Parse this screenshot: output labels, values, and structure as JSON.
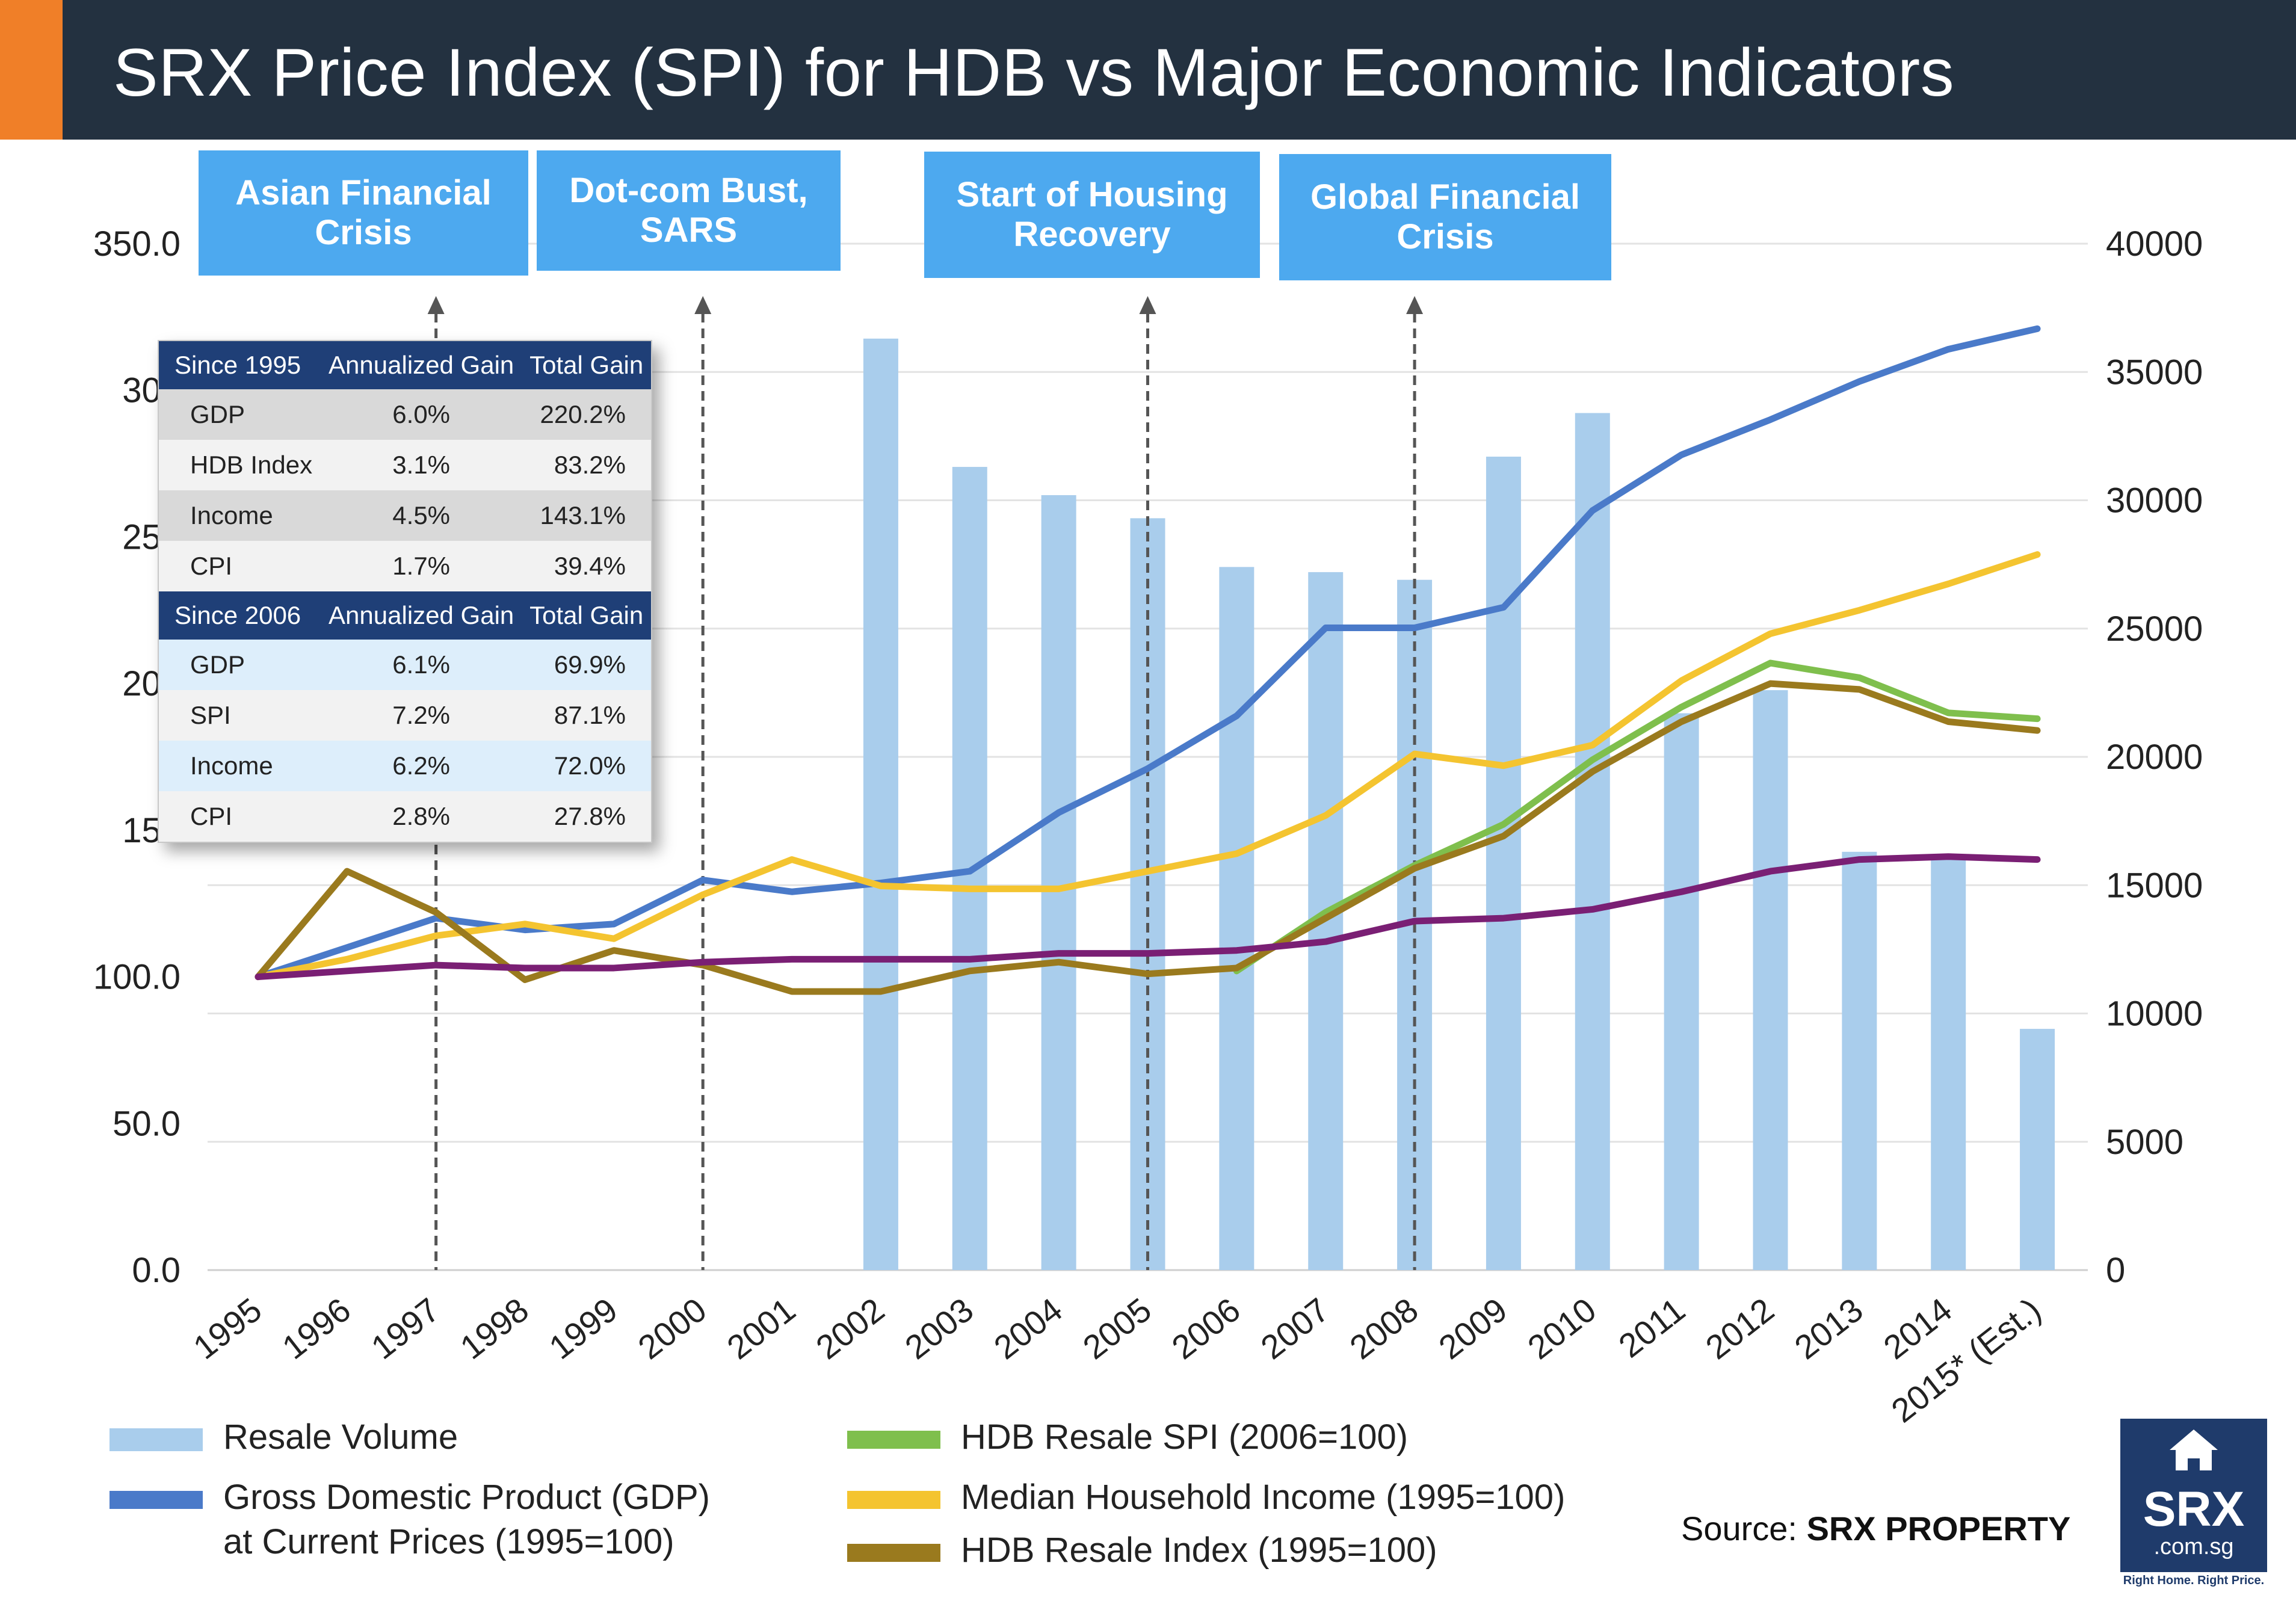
{
  "header": {
    "title": "SRX Price Index (SPI) for HDB vs Major Economic Indicators",
    "background_color": "#233140",
    "accent_color": "#f07f28"
  },
  "events": [
    {
      "label": "Asian Financial\nCrisis",
      "year": "1997"
    },
    {
      "label": "Dot-com Bust,\nSARS",
      "year": "2000"
    },
    {
      "label": "Start of Housing\nRecovery",
      "year": "2005"
    },
    {
      "label": "Global Financial\nCrisis",
      "year": "2008"
    }
  ],
  "stats_table": {
    "groups": [
      {
        "headers": [
          "Since 1995",
          "Annualized Gain",
          "Total Gain"
        ],
        "rows": [
          [
            "GDP",
            "6.0%",
            "220.2%"
          ],
          [
            "HDB Index",
            "3.1%",
            "83.2%"
          ],
          [
            "Income",
            "4.5%",
            "143.1%"
          ],
          [
            "CPI",
            "1.7%",
            "39.4%"
          ]
        ]
      },
      {
        "headers": [
          "Since 2006",
          "Annualized Gain",
          "Total Gain"
        ],
        "rows": [
          [
            "GDP",
            "6.1%",
            "69.9%"
          ],
          [
            "SPI",
            "7.2%",
            "87.1%"
          ],
          [
            "Income",
            "6.2%",
            "72.0%"
          ],
          [
            "CPI",
            "2.8%",
            "27.8%"
          ]
        ]
      }
    ]
  },
  "chart_data": {
    "type": "bar",
    "categories": [
      "1995",
      "1996",
      "1997",
      "1998",
      "1999",
      "2000",
      "2001",
      "2002",
      "2003",
      "2004",
      "2005",
      "2006",
      "2007",
      "2008",
      "2009",
      "2010",
      "2011",
      "2012",
      "2013",
      "2014",
      "2015* (Est.)"
    ],
    "y_left": {
      "min": 0,
      "max": 350,
      "ticks": [
        "0.0",
        "50.0",
        "100.0",
        "150",
        "200",
        "250",
        "300",
        "350.0"
      ]
    },
    "y_right": {
      "min": 0,
      "max": 40000,
      "ticks": [
        "0",
        "5000",
        "10000",
        "15000",
        "20000",
        "25000",
        "30000",
        "35000",
        "40000"
      ]
    },
    "grid": true,
    "legend_position": "bottom",
    "bar_series": {
      "name": "Resale Volume",
      "axis": "right",
      "color": "#a9cdec",
      "values": [
        null,
        null,
        null,
        null,
        null,
        null,
        null,
        36300,
        31300,
        30200,
        29300,
        27400,
        27200,
        26900,
        31700,
        33400,
        21700,
        22600,
        16300,
        16200,
        9400
      ]
    },
    "line_series": [
      {
        "name": "Gross Domestic Product (GDP)\nat Current Prices (1995=100)",
        "axis": "left",
        "color": "#4a7ac9",
        "values": [
          100,
          110,
          120,
          116,
          118,
          133,
          129,
          132,
          136,
          156,
          171,
          189,
          219,
          219,
          226,
          259,
          278,
          290,
          303,
          314,
          321
        ]
      },
      {
        "name": "Median Household Income (1995=100)",
        "axis": "left",
        "color": "#f4c430",
        "values": [
          100,
          106,
          114,
          118,
          113,
          128,
          140,
          131,
          130,
          130,
          136,
          142,
          155,
          176,
          172,
          179,
          201,
          217,
          225,
          234,
          244
        ]
      },
      {
        "name": "HDB Resale SPI (2006=100)",
        "axis": "left",
        "color": "#7fbf4d",
        "start_index": 11,
        "values": [
          null,
          null,
          null,
          null,
          null,
          null,
          null,
          null,
          null,
          null,
          null,
          102,
          122,
          138,
          152,
          174,
          192,
          207,
          202,
          190,
          188
        ]
      },
      {
        "name": "HDB Resale Index (1995=100)",
        "axis": "left",
        "color": "#9a7a1e",
        "values": [
          100,
          136,
          122,
          99,
          109,
          104,
          95,
          95,
          102,
          105,
          101,
          103,
          120,
          137,
          148,
          170,
          187,
          200,
          198,
          187,
          184
        ]
      },
      {
        "name": "CPI",
        "axis": "left",
        "color": "#7a1f74",
        "legend": false,
        "values": [
          100,
          102,
          104,
          103,
          103,
          105,
          106,
          106,
          106,
          108,
          108,
          109,
          112,
          119,
          120,
          123,
          129,
          136,
          140,
          141,
          140
        ]
      }
    ]
  },
  "legend": [
    {
      "label": "Resale Volume",
      "color": "#a9cdec"
    },
    {
      "label": "Gross Domestic Product (GDP)\nat Current Prices (1995=100)",
      "color": "#4a7ac9"
    },
    {
      "label": "HDB Resale SPI (2006=100)",
      "color": "#7fbf4d"
    },
    {
      "label": "Median Household Income (1995=100)",
      "color": "#f4c430"
    },
    {
      "label": "HDB Resale Index (1995=100)",
      "color": "#9a7a1e"
    }
  ],
  "source": {
    "prefix": "Source:",
    "name": "SRX PROPERTY"
  },
  "logo": {
    "text": "SRX",
    "sub": ".com.sg",
    "tagline": "Right Home. Right Price.",
    "icon": "house-icon"
  },
  "colors": {
    "event_box": "#4da9ef",
    "table_header": "#1f3f77"
  }
}
